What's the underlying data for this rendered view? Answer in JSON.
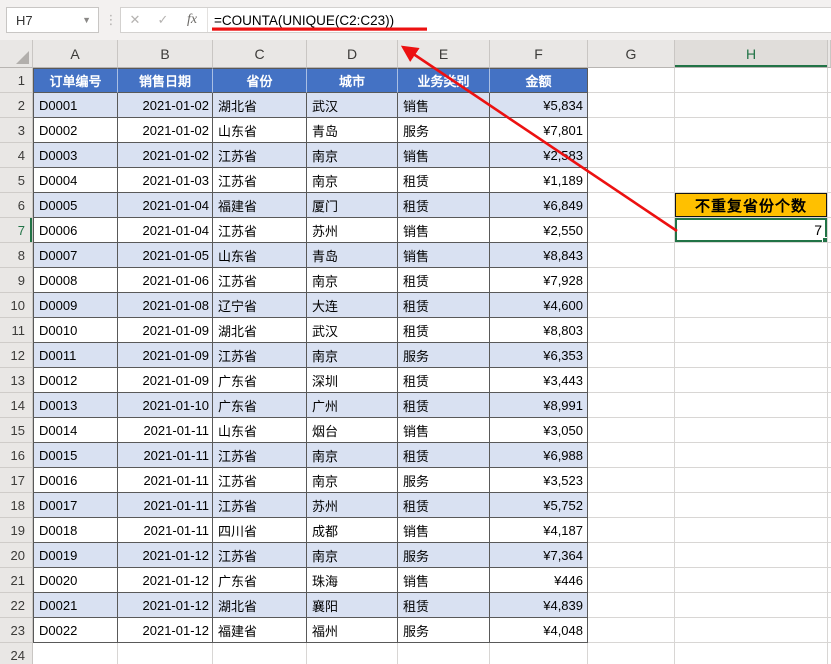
{
  "formula_bar": {
    "name_box": "H7",
    "cancel_icon": "✕",
    "confirm_icon": "✓",
    "fx_icon": "fx",
    "formula": "=COUNTA(UNIQUE(C2:C23))"
  },
  "columns": [
    "A",
    "B",
    "C",
    "D",
    "E",
    "F",
    "G",
    "H"
  ],
  "active_column": "H",
  "active_row": 7,
  "row_numbers": [
    1,
    2,
    3,
    4,
    5,
    6,
    7,
    8,
    9,
    10,
    11,
    12,
    13,
    14,
    15,
    16,
    17,
    18,
    19,
    20,
    21,
    22,
    23,
    24
  ],
  "table": {
    "headers": [
      "订单编号",
      "销售日期",
      "省份",
      "城市",
      "业务类别",
      "金额"
    ],
    "rows": [
      [
        "D0001",
        "2021-01-02",
        "湖北省",
        "武汉",
        "销售",
        "¥5,834"
      ],
      [
        "D0002",
        "2021-01-02",
        "山东省",
        "青岛",
        "服务",
        "¥7,801"
      ],
      [
        "D0003",
        "2021-01-02",
        "江苏省",
        "南京",
        "销售",
        "¥2,583"
      ],
      [
        "D0004",
        "2021-01-03",
        "江苏省",
        "南京",
        "租赁",
        "¥1,189"
      ],
      [
        "D0005",
        "2021-01-04",
        "福建省",
        "厦门",
        "租赁",
        "¥6,849"
      ],
      [
        "D0006",
        "2021-01-04",
        "江苏省",
        "苏州",
        "销售",
        "¥2,550"
      ],
      [
        "D0007",
        "2021-01-05",
        "山东省",
        "青岛",
        "销售",
        "¥8,843"
      ],
      [
        "D0008",
        "2021-01-06",
        "江苏省",
        "南京",
        "租赁",
        "¥7,928"
      ],
      [
        "D0009",
        "2021-01-08",
        "辽宁省",
        "大连",
        "租赁",
        "¥4,600"
      ],
      [
        "D0010",
        "2021-01-09",
        "湖北省",
        "武汉",
        "租赁",
        "¥8,803"
      ],
      [
        "D0011",
        "2021-01-09",
        "江苏省",
        "南京",
        "服务",
        "¥6,353"
      ],
      [
        "D0012",
        "2021-01-09",
        "广东省",
        "深圳",
        "租赁",
        "¥3,443"
      ],
      [
        "D0013",
        "2021-01-10",
        "广东省",
        "广州",
        "租赁",
        "¥8,991"
      ],
      [
        "D0014",
        "2021-01-11",
        "山东省",
        "烟台",
        "销售",
        "¥3,050"
      ],
      [
        "D0015",
        "2021-01-11",
        "江苏省",
        "南京",
        "租赁",
        "¥6,988"
      ],
      [
        "D0016",
        "2021-01-11",
        "江苏省",
        "南京",
        "服务",
        "¥3,523"
      ],
      [
        "D0017",
        "2021-01-11",
        "江苏省",
        "苏州",
        "租赁",
        "¥5,752"
      ],
      [
        "D0018",
        "2021-01-11",
        "四川省",
        "成都",
        "销售",
        "¥4,187"
      ],
      [
        "D0019",
        "2021-01-12",
        "江苏省",
        "南京",
        "服务",
        "¥7,364"
      ],
      [
        "D0020",
        "2021-01-12",
        "广东省",
        "珠海",
        "销售",
        "¥446"
      ],
      [
        "D0021",
        "2021-01-12",
        "湖北省",
        "襄阳",
        "租赁",
        "¥4,839"
      ],
      [
        "D0022",
        "2021-01-12",
        "福建省",
        "福州",
        "服务",
        "¥4,048"
      ]
    ]
  },
  "annotation_cells": {
    "h6_label": "不重复省份个数",
    "h7_value": "7"
  },
  "colors": {
    "table_header_blue": "#4472C4",
    "band_blue": "#D9E1F2",
    "highlight_orange": "#FFC000",
    "selection_green": "#217346",
    "annotation_red": "#EC1111"
  }
}
